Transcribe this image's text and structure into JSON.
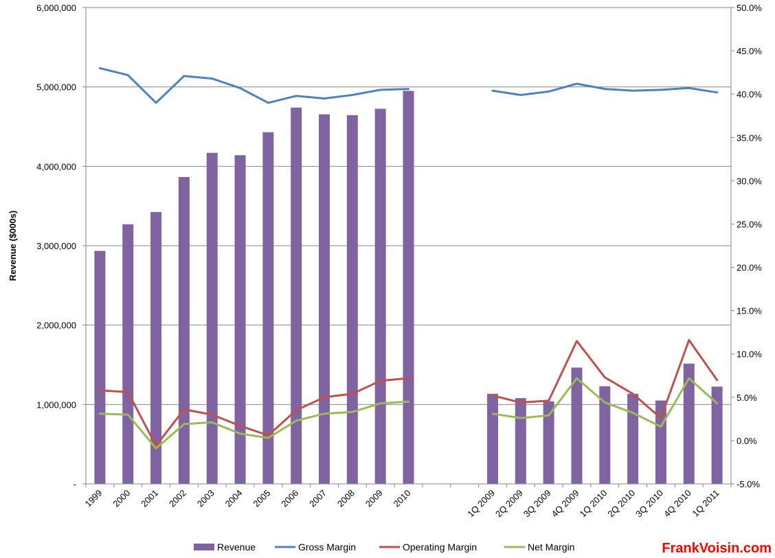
{
  "chart_data": {
    "type": "bar",
    "title": "",
    "xlabel": "",
    "ylabel": "Revenue ($000s)",
    "ylim": [
      0,
      6000000
    ],
    "y2lim": [
      -0.05,
      0.5
    ],
    "grid": true,
    "legend_position": "bottom",
    "categories": [
      "1999",
      "2000",
      "2001",
      "2002",
      "2003",
      "2004",
      "2005",
      "2006",
      "2007",
      "2008",
      "2009",
      "2010",
      "",
      "",
      "1Q 2009",
      "2Q 2009",
      "3Q 2009",
      "4Q 2009",
      "1Q 2010",
      "2Q 2010",
      "3Q 2010",
      "4Q 2010",
      "1Q 2011"
    ],
    "left_ticks": [
      "6,000,000",
      "5,000,000",
      "4,000,000",
      "3,000,000",
      "2,000,000",
      "1,000,000",
      "-"
    ],
    "left_tick_values": [
      6000000,
      5000000,
      4000000,
      3000000,
      2000000,
      1000000,
      0
    ],
    "right_ticks": [
      "50.0%",
      "45.0%",
      "40.0%",
      "35.0%",
      "30.0%",
      "25.0%",
      "20.0%",
      "15.0%",
      "10.0%",
      "5.0%",
      "0.0%",
      "-5.0%"
    ],
    "right_tick_values": [
      0.5,
      0.45,
      0.4,
      0.35,
      0.3,
      0.25,
      0.2,
      0.15,
      0.1,
      0.05,
      0.0,
      -0.05
    ],
    "series": [
      {
        "name": "Revenue",
        "type": "bar",
        "axis": "left",
        "values": [
          2935000,
          3270000,
          3425000,
          3865000,
          4170000,
          4140000,
          4430000,
          4740000,
          4655000,
          4645000,
          4725000,
          4950000,
          null,
          null,
          1135000,
          1080000,
          1040000,
          1465000,
          1230000,
          1135000,
          1050000,
          1515000,
          1225000
        ]
      },
      {
        "name": "Gross Margin",
        "type": "line",
        "axis": "right",
        "values": [
          0.43,
          0.422,
          0.39,
          0.421,
          0.418,
          0.407,
          0.39,
          0.398,
          0.395,
          0.399,
          0.405,
          0.406,
          null,
          null,
          0.404,
          0.399,
          0.403,
          0.412,
          0.406,
          0.404,
          0.405,
          0.407,
          0.402
        ]
      },
      {
        "name": "Operating Margin",
        "type": "line",
        "axis": "right",
        "values": [
          0.058,
          0.056,
          -0.006,
          0.036,
          0.03,
          0.017,
          0.006,
          0.035,
          0.05,
          0.054,
          0.069,
          0.072,
          null,
          null,
          0.052,
          0.044,
          0.046,
          0.115,
          0.073,
          0.054,
          0.026,
          0.116,
          0.07
        ]
      },
      {
        "name": "Net Margin",
        "type": "line",
        "axis": "right",
        "values": [
          0.031,
          0.03,
          -0.009,
          0.019,
          0.021,
          0.008,
          0.003,
          0.023,
          0.031,
          0.033,
          0.043,
          0.045,
          null,
          null,
          0.031,
          0.026,
          0.029,
          0.072,
          0.044,
          0.032,
          0.016,
          0.072,
          0.043
        ]
      }
    ],
    "colors": {
      "Revenue": "#8064a2",
      "Gross Margin": "#4f81bd",
      "Operating Margin": "#c0504d",
      "Net Margin": "#9bbb59",
      "grid": "#868686",
      "axis": "#868686"
    }
  },
  "brand": {
    "text": "FrankVoisin.com",
    "color": "#ff0000"
  }
}
